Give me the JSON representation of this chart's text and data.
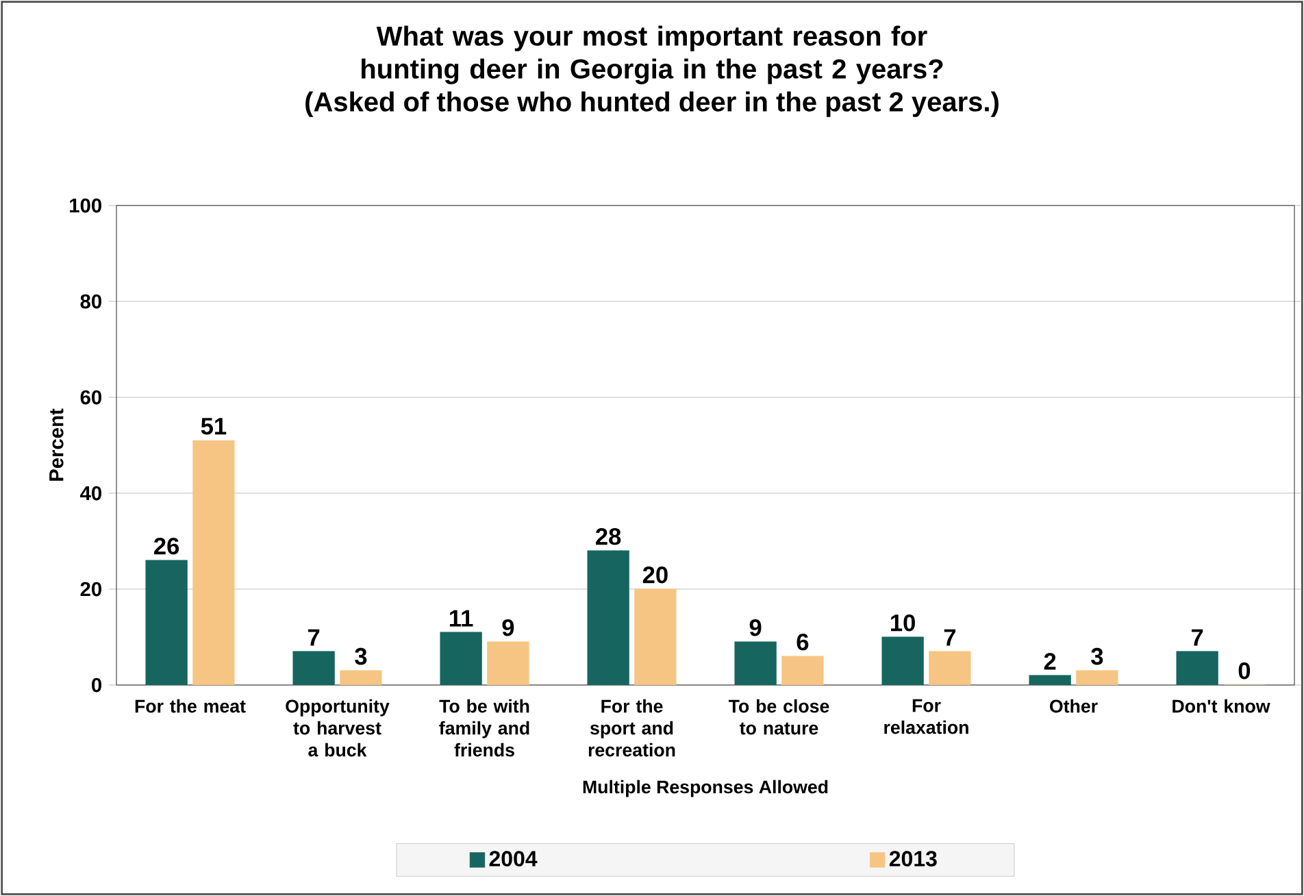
{
  "chart_data": {
    "type": "bar",
    "title": "What was your most important reason for hunting deer in Georgia in the past 2 years?",
    "subtitle": "(Asked of those who hunted deer in the past 2 years.)",
    "xlabel": "Multiple Responses Allowed",
    "ylabel": "Percent",
    "categories": [
      "For the meat",
      "Opportunity to harvest a buck",
      "To be with family and friends",
      "For the sport and recreation",
      "To be close to nature",
      "For relaxation",
      "Other",
      "Don't know"
    ],
    "series": [
      {
        "name": "2004",
        "color": "#16665f",
        "values": [
          26,
          7,
          11,
          28,
          9,
          10,
          2,
          7
        ]
      },
      {
        "name": "2013",
        "color": "#f7c583",
        "values": [
          51,
          3,
          9,
          20,
          6,
          7,
          3,
          0
        ]
      }
    ],
    "ylim": [
      0,
      100
    ],
    "yticks": [
      0,
      20,
      40,
      60,
      80,
      100
    ],
    "grid": "y",
    "legend": "bottom",
    "data_labels": true
  }
}
